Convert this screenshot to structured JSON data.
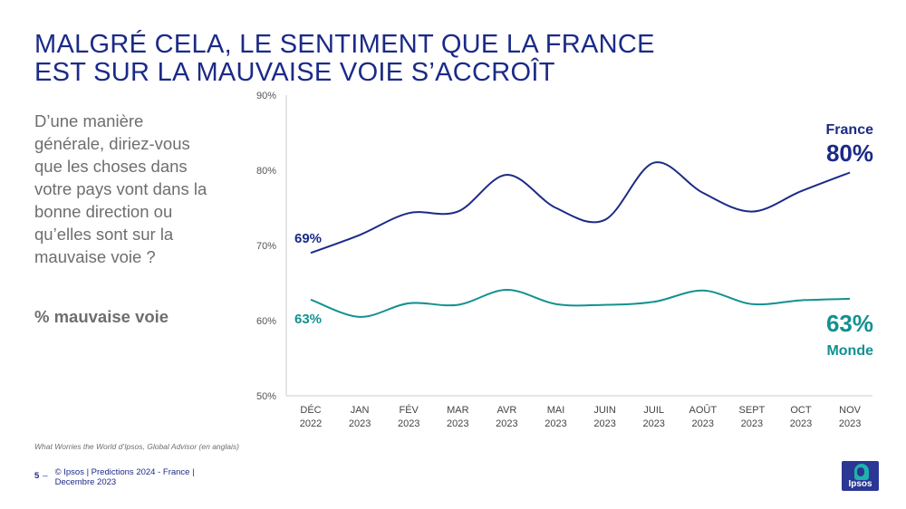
{
  "slide": {
    "title_line1": "MALGRÉ CELA, LE SENTIMENT QUE LA FRANCE",
    "title_line2": "EST SUR LA MAUVAISE VOIE S’ACCROÎT",
    "question": "D’une manière générale, diriez-vous que les choses dans votre pays vont dans la bonne direction ou qu’elles sont sur la mauvaise voie ?",
    "measure": "% mauvaise voie",
    "source": "What Worries the World d’Ipsos, Global Advisor (en anglais)",
    "page_number": "5",
    "footer_line1": "© Ipsos | Predictions 2024 - France |",
    "footer_line2": "Decembre 2023",
    "logo_text": "Ipsos"
  },
  "colors": {
    "title": "#1b2a87",
    "france": "#1b2a87",
    "monde": "#139191",
    "text_gray": "#6e6e6e",
    "axis": "#cccccc"
  },
  "chart_data": {
    "type": "line",
    "categories": [
      [
        "DÉC",
        "2022"
      ],
      [
        "JAN",
        "2023"
      ],
      [
        "FÉV",
        "2023"
      ],
      [
        "MAR",
        "2023"
      ],
      [
        "AVR",
        "2023"
      ],
      [
        "MAI",
        "2023"
      ],
      [
        "JUIN",
        "2023"
      ],
      [
        "JUIL",
        "2023"
      ],
      [
        "AOÛT",
        "2023"
      ],
      [
        "SEPT",
        "2023"
      ],
      [
        "OCT",
        "2023"
      ],
      [
        "NOV",
        "2023"
      ]
    ],
    "ylim": [
      50,
      90
    ],
    "yticks": [
      50,
      60,
      70,
      80,
      90
    ],
    "ytick_labels": [
      "50%",
      "60%",
      "70%",
      "80%",
      "90%"
    ],
    "grid": false,
    "series": [
      {
        "name": "France",
        "values": [
          69,
          71.4,
          74.3,
          74.5,
          79.4,
          75,
          73.4,
          81,
          77,
          74.5,
          77.2,
          79.7
        ],
        "start_label": "69%",
        "end_label": "80%"
      },
      {
        "name": "Monde",
        "values": [
          62.8,
          60.5,
          62.3,
          62.1,
          64.1,
          62.2,
          62.1,
          62.5,
          64,
          62.2,
          62.7,
          62.9
        ],
        "start_label": "63%",
        "end_label": "63%"
      }
    ]
  }
}
